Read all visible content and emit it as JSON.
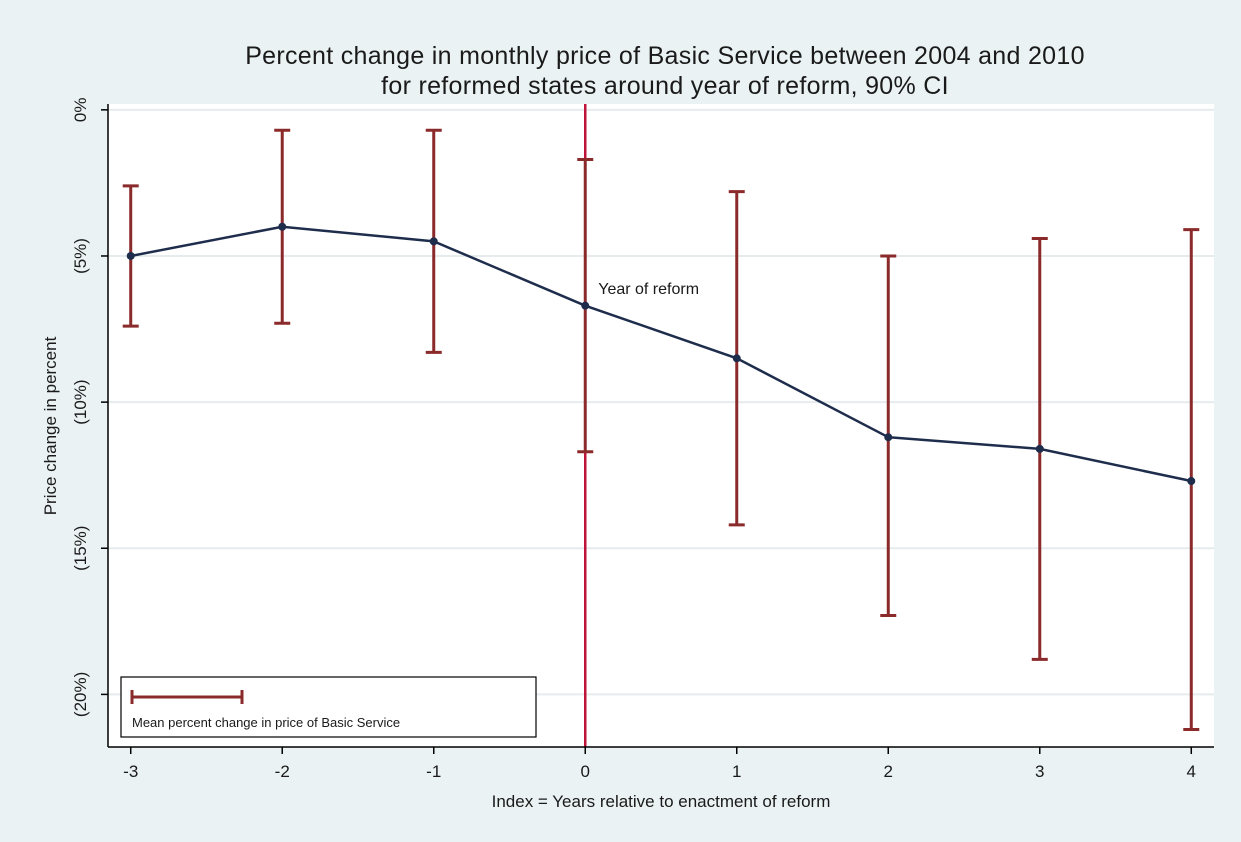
{
  "chart_data": {
    "type": "line",
    "title": [
      "Percent change in monthly price of Basic Service between 2004 and 2010",
      "for reformed states around year of reform, 90% CI"
    ],
    "xlabel": "Index = Years relative to enactment of reform",
    "ylabel": "Price change in percent",
    "x": [
      -3,
      -2,
      -1,
      0,
      1,
      2,
      3,
      4
    ],
    "x_tick_labels": [
      "-3",
      "-2",
      "-1",
      "0",
      "1",
      "2",
      "3",
      "4"
    ],
    "xlim": [
      -3.15,
      4.15
    ],
    "y_ticks": [
      0,
      -5,
      -10,
      -15,
      -20
    ],
    "y_tick_labels": [
      "0%",
      "(5%)",
      "(10%)",
      "(15%)",
      "(20%)"
    ],
    "ylim": [
      -21.8,
      0.2
    ],
    "grid": true,
    "series": [
      {
        "name": "Mean percent change in price of Basic Service",
        "values": [
          -5.0,
          -4.0,
          -4.5,
          -6.7,
          -8.5,
          -11.2,
          -11.6,
          -12.7
        ],
        "ci_low": [
          -7.4,
          -7.3,
          -8.3,
          -11.7,
          -14.2,
          -17.3,
          -18.8,
          -21.2
        ],
        "ci_high": [
          -2.6,
          -0.7,
          -0.7,
          -1.7,
          -2.8,
          -5.0,
          -4.4,
          -4.1
        ]
      }
    ],
    "reference_line": {
      "x": 0,
      "label": "Year of reform"
    },
    "legend_position": "bottom-left",
    "colors": {
      "line": "#1f2d4d",
      "marker": "#1f2d4d",
      "error_bar": "#8b2a2a",
      "reference": "#c0133a",
      "grid": "#e6ecee",
      "plot_bg": "#ffffff",
      "outer_bg": "#eaf2f3"
    }
  }
}
